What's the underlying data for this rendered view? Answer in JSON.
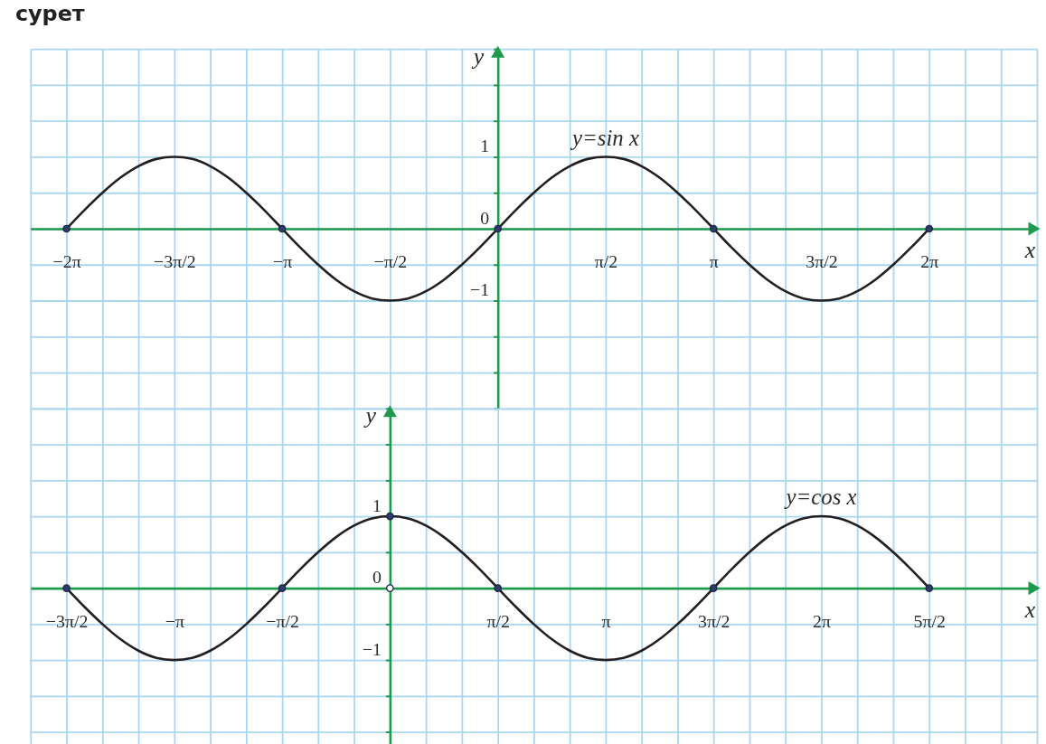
{
  "chart_data": [
    {
      "type": "line",
      "title": "сурет",
      "xlabel": "x",
      "ylabel": "y",
      "xlim": [
        -6.807,
        7.854
      ],
      "ylim": [
        -2.5,
        2.5
      ],
      "grid": true,
      "xticks": [
        {
          "value": -6.807,
          "label": null
        },
        {
          "value": -6.283,
          "label": "−2π"
        },
        {
          "value": -5.76,
          "label": null
        },
        {
          "value": -5.236,
          "label": null
        },
        {
          "value": -4.712,
          "label": "−3π/2"
        },
        {
          "value": -4.189,
          "label": null
        },
        {
          "value": -3.665,
          "label": null
        },
        {
          "value": -3.142,
          "label": "−π"
        },
        {
          "value": -2.618,
          "label": null
        },
        {
          "value": -2.094,
          "label": null
        },
        {
          "value": -1.571,
          "label": "−π/2"
        },
        {
          "value": -1.047,
          "label": null
        },
        {
          "value": -0.524,
          "label": null
        },
        {
          "value": 0,
          "label": null
        },
        {
          "value": 0.524,
          "label": null
        },
        {
          "value": 1.047,
          "label": null
        },
        {
          "value": 1.571,
          "label": "π/2"
        },
        {
          "value": 2.094,
          "label": null
        },
        {
          "value": 2.618,
          "label": null
        },
        {
          "value": 3.142,
          "label": "π"
        },
        {
          "value": 3.665,
          "label": null
        },
        {
          "value": 4.189,
          "label": null
        },
        {
          "value": 4.712,
          "label": "3π/2"
        },
        {
          "value": 5.236,
          "label": null
        },
        {
          "value": 5.76,
          "label": null
        },
        {
          "value": 6.283,
          "label": "2π"
        },
        {
          "value": 6.807,
          "label": null
        },
        {
          "value": 7.33,
          "label": null
        },
        {
          "value": 7.854,
          "label": null
        }
      ],
      "yticks": [
        {
          "value": -2.5,
          "label": null
        },
        {
          "value": -2,
          "label": null
        },
        {
          "value": -1.5,
          "label": null
        },
        {
          "value": -1,
          "label": "−1"
        },
        {
          "value": -0.5,
          "label": null
        },
        0,
        {
          "value": 0.5,
          "label": null
        },
        1,
        {
          "value": 1.5,
          "label": null
        },
        {
          "value": 2,
          "label": null
        },
        {
          "value": 2.5,
          "label": null
        }
      ],
      "series": [
        {
          "name": "y=sin x",
          "color": "#231f20",
          "x": [
            -6.283,
            -6.021,
            -5.76,
            -5.498,
            -5.236,
            -4.974,
            -4.712,
            -4.451,
            -4.189,
            -3.927,
            -3.665,
            -3.403,
            -3.142,
            -2.88,
            -2.618,
            -2.356,
            -2.094,
            -1.833,
            -1.571,
            -1.309,
            -1.047,
            -0.785,
            -0.524,
            -0.262,
            0,
            0.262,
            0.524,
            0.785,
            1.047,
            1.309,
            1.571,
            1.833,
            2.094,
            2.356,
            2.618,
            2.88,
            3.142,
            3.403,
            3.665,
            3.927,
            4.189,
            4.451,
            4.712,
            4.974,
            5.236,
            5.498,
            5.76,
            6.021,
            6.283
          ],
          "values": [
            0,
            0.26,
            0.5,
            0.71,
            0.87,
            0.97,
            1,
            0.97,
            0.87,
            0.71,
            0.5,
            0.26,
            0,
            -0.26,
            -0.5,
            -0.71,
            -0.87,
            -0.97,
            -1,
            -0.97,
            -0.87,
            -0.71,
            -0.5,
            -0.26,
            0,
            0.26,
            0.5,
            0.71,
            0.87,
            0.97,
            1,
            0.97,
            0.87,
            0.71,
            0.5,
            0.26,
            0,
            -0.26,
            -0.5,
            -0.71,
            -0.87,
            -0.97,
            -1,
            -0.97,
            -0.87,
            -0.71,
            -0.5,
            -0.26,
            0
          ]
        },
        {
          "type": "scatter",
          "marker": "circle",
          "color": "#2f3c6b",
          "x": [
            -6.283,
            -3.142,
            0,
            3.142,
            6.283
          ],
          "values": [
            0,
            0,
            0,
            0,
            0
          ]
        }
      ]
    },
    {
      "type": "line",
      "xlabel": "x",
      "ylabel": "y",
      "xlim": [
        -5.236,
        9.425
      ],
      "ylim": [
        -2.3,
        2.5
      ],
      "grid": true,
      "xticks": [
        {
          "value": -5.236,
          "label": null
        },
        {
          "value": -4.712,
          "label": "−3π/2"
        },
        {
          "value": -4.189,
          "label": null
        },
        {
          "value": -3.665,
          "label": null
        },
        {
          "value": -3.142,
          "label": "−π"
        },
        {
          "value": -2.618,
          "label": null
        },
        {
          "value": -2.094,
          "label": null
        },
        {
          "value": -1.571,
          "label": "−π/2"
        },
        {
          "value": -1.047,
          "label": null
        },
        {
          "value": -0.524,
          "label": null
        },
        {
          "value": 0,
          "label": null
        },
        {
          "value": 0.524,
          "label": null
        },
        {
          "value": 1.047,
          "label": null
        },
        {
          "value": 1.571,
          "label": "π/2"
        },
        {
          "value": 2.094,
          "label": null
        },
        {
          "value": 2.618,
          "label": null
        },
        {
          "value": 3.142,
          "label": "π"
        },
        {
          "value": 3.665,
          "label": null
        },
        {
          "value": 4.189,
          "label": null
        },
        {
          "value": 4.712,
          "label": "3π/2"
        },
        {
          "value": 5.236,
          "label": null
        },
        {
          "value": 5.76,
          "label": null
        },
        {
          "value": 6.283,
          "label": "2π"
        },
        {
          "value": 6.807,
          "label": null
        },
        {
          "value": 7.33,
          "label": null
        },
        {
          "value": 7.854,
          "label": "5π/2"
        },
        {
          "value": 8.378,
          "label": null
        },
        {
          "value": 8.901,
          "label": null
        },
        {
          "value": 9.425,
          "label": null
        }
      ],
      "yticks": [
        {
          "value": -2,
          "label": null
        },
        {
          "value": -1.5,
          "label": null
        },
        {
          "value": -1,
          "label": "−1"
        },
        {
          "value": -0.5,
          "label": null
        },
        0,
        {
          "value": 0.5,
          "label": null
        },
        1,
        {
          "value": 1.5,
          "label": null
        },
        {
          "value": 2,
          "label": null
        },
        {
          "value": 2.5,
          "label": null
        }
      ],
      "series": [
        {
          "name": "y=cos x",
          "color": "#231f20",
          "x": [
            -4.712,
            -4.451,
            -4.189,
            -3.927,
            -3.665,
            -3.403,
            -3.142,
            -2.88,
            -2.618,
            -2.356,
            -2.094,
            -1.833,
            -1.571,
            -1.309,
            -1.047,
            -0.785,
            -0.524,
            -0.262,
            0,
            0.262,
            0.524,
            0.785,
            1.047,
            1.309,
            1.571,
            1.833,
            2.094,
            2.356,
            2.618,
            2.88,
            3.142,
            3.403,
            3.665,
            3.927,
            4.189,
            4.451,
            4.712,
            4.974,
            5.236,
            5.498,
            5.76,
            6.021,
            6.283,
            6.545,
            6.807,
            7.069,
            7.33,
            7.592,
            7.854
          ],
          "values": [
            0,
            -0.26,
            -0.5,
            -0.71,
            -0.87,
            -0.97,
            -1,
            -0.97,
            -0.87,
            -0.71,
            -0.5,
            -0.26,
            0,
            0.26,
            0.5,
            0.71,
            0.87,
            0.97,
            1,
            0.97,
            0.87,
            0.71,
            0.5,
            0.26,
            0,
            -0.26,
            -0.5,
            -0.71,
            -0.87,
            -0.97,
            -1,
            -0.97,
            -0.87,
            -0.71,
            -0.5,
            -0.26,
            0,
            0.26,
            0.5,
            0.71,
            0.87,
            0.97,
            1,
            0.97,
            0.87,
            0.71,
            0.5,
            0.26,
            0
          ]
        },
        {
          "type": "scatter",
          "marker": "circle",
          "color": "#2f3c6b",
          "x": [
            -4.712,
            -1.571,
            0,
            1.571,
            4.712,
            7.854
          ],
          "values": [
            0,
            0,
            1,
            0,
            0,
            0
          ]
        },
        {
          "type": "scatter",
          "marker": "circle",
          "color": "#ffffff",
          "x": [
            0
          ],
          "values": [
            0
          ]
        }
      ]
    }
  ]
}
